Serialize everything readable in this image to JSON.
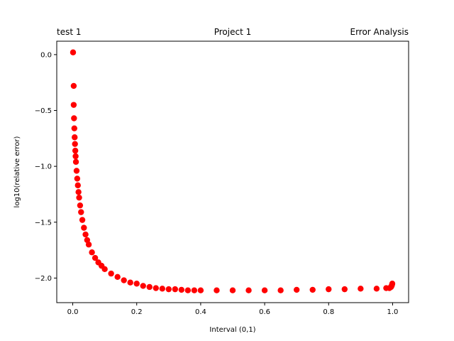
{
  "chart_data": {
    "type": "scatter",
    "titles": {
      "left": "test 1",
      "center": "Project 1",
      "right": "Error Analysis"
    },
    "xlabel": "Interval (0,1)",
    "ylabel": "log10(relative error)",
    "xlim": [
      -0.05,
      1.05
    ],
    "ylim": [
      -2.22,
      0.12
    ],
    "x_ticks": [
      {
        "value": 0.0,
        "label": "0.0"
      },
      {
        "value": 0.2,
        "label": "0.2"
      },
      {
        "value": 0.4,
        "label": "0.4"
      },
      {
        "value": 0.6,
        "label": "0.6"
      },
      {
        "value": 0.8,
        "label": "0.8"
      },
      {
        "value": 1.0,
        "label": "1.0"
      }
    ],
    "y_ticks": [
      {
        "value": 0.0,
        "label": "0.0"
      },
      {
        "value": -0.5,
        "label": "−0.5"
      },
      {
        "value": -1.0,
        "label": "−1.0"
      },
      {
        "value": -1.5,
        "label": "−1.5"
      },
      {
        "value": -2.0,
        "label": "−2.0"
      }
    ],
    "grid": false,
    "marker_color": "#ff0000",
    "series": [
      {
        "marker": "circle",
        "x": [
          0.001,
          0.003,
          0.003,
          0.004,
          0.005,
          0.006,
          0.007,
          0.008,
          0.009,
          0.01,
          0.012,
          0.014,
          0.016,
          0.018,
          0.02,
          0.023,
          0.026,
          0.03,
          0.035,
          0.04,
          0.045,
          0.05,
          0.06,
          0.07,
          0.08,
          0.09,
          0.1,
          0.12,
          0.14,
          0.16,
          0.18,
          0.2,
          0.22,
          0.24,
          0.26,
          0.28,
          0.3,
          0.32,
          0.34,
          0.36,
          0.38,
          0.4,
          0.45,
          0.5,
          0.55,
          0.6,
          0.65,
          0.7,
          0.75,
          0.8,
          0.85,
          0.9,
          0.95,
          0.98,
          0.99,
          0.995,
          0.997,
          0.998,
          0.999
        ],
        "y": [
          0.02,
          -0.28,
          -0.45,
          -0.57,
          -0.66,
          -0.74,
          -0.8,
          -0.86,
          -0.91,
          -0.96,
          -1.04,
          -1.11,
          -1.17,
          -1.23,
          -1.28,
          -1.35,
          -1.41,
          -1.48,
          -1.55,
          -1.61,
          -1.66,
          -1.7,
          -1.77,
          -1.82,
          -1.86,
          -1.89,
          -1.92,
          -1.96,
          -1.99,
          -2.02,
          -2.04,
          -2.05,
          -2.07,
          -2.08,
          -2.09,
          -2.095,
          -2.1,
          -2.1,
          -2.105,
          -2.11,
          -2.11,
          -2.11,
          -2.11,
          -2.11,
          -2.11,
          -2.11,
          -2.11,
          -2.105,
          -2.105,
          -2.1,
          -2.1,
          -2.095,
          -2.095,
          -2.09,
          -2.09,
          -2.08,
          -2.07,
          -2.06,
          -2.05
        ]
      }
    ]
  }
}
